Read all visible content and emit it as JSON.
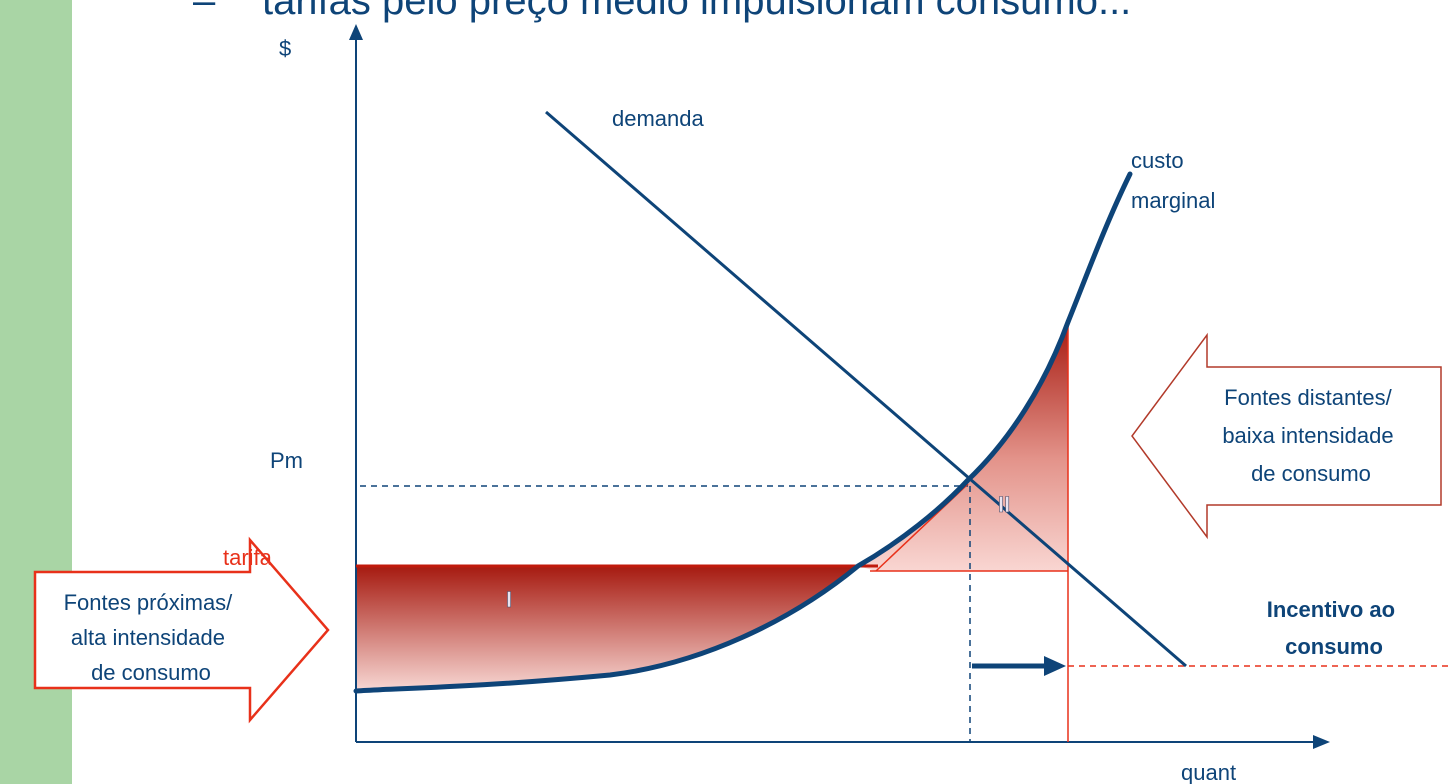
{
  "slide": {
    "bullet_dash": "–",
    "heading_partial": "tarifas pelo preço médio impulsionam consumo...",
    "colors": {
      "stripe": "#a9d5a5",
      "curve": "#0e4478",
      "red": "#e8311a",
      "area_dark": "#a61a10",
      "area_light": "#f8d0cc"
    }
  },
  "diagram": {
    "y_axis_label": "$",
    "x_axis_label": "quant",
    "demand_label": "demanda",
    "marginal_cost_label_line1": "custo",
    "marginal_cost_label_line2": "marginal",
    "pm_label": "Pm",
    "tarifa_label": "tarifa",
    "area_one_label": "I",
    "area_two_label": "II",
    "left_arrow_line1": "Fontes próximas/",
    "left_arrow_line2": "alta intensidade",
    "left_arrow_line3": "de consumo",
    "right_arrow_line1": "Fontes distantes/",
    "right_arrow_line2": "baixa intensidade",
    "right_arrow_line3": "de consumo",
    "incentive_line1": "Incentivo ao",
    "incentive_line2": "consumo"
  }
}
